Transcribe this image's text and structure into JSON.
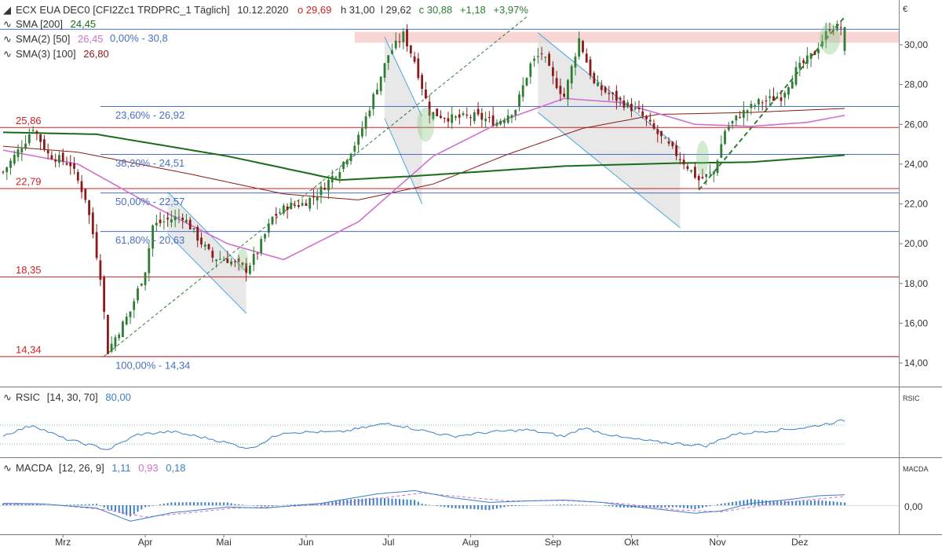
{
  "header": {
    "instrument": "ECX EUA DEC0 [CFI2Zc1 TRDPRC_1 Täglich]",
    "date": "10.12.2020",
    "open": "o 29,69",
    "high": "h 31,00",
    "low": "l 29,62",
    "close": "c 30,88",
    "change": "+1,18",
    "change_pct": "+3,97%"
  },
  "indicators": [
    {
      "label": "SMA [200]",
      "value": "24,45",
      "color": "#1a6b1a"
    },
    {
      "label": "SMA(2) [50]",
      "value": "26,45",
      "color": "#d070d0"
    },
    {
      "label": "SMA(3) [100]",
      "value": "26,80",
      "color": "#8b1a1a"
    }
  ],
  "rsi": {
    "label": "RSIC",
    "params": "[14, 30, 70]",
    "value": "80,00",
    "axis_label": "RSIC"
  },
  "macd": {
    "label": "MACDA",
    "params": "[12, 26, 9]",
    "v1": "1,11",
    "v2": "0,93",
    "v3": "0,18",
    "axis_label": "MACDA",
    "zero_label": "0,00"
  },
  "colors": {
    "up": "#2e7d32",
    "down": "#8b1a1a",
    "sma200": "#1a6b1a",
    "sma50": "#d070d0",
    "sma100": "#8b1a1a",
    "fib": "#4a6fc2",
    "support": "#cc2222",
    "channel": "#4aa8d8",
    "trend": "#2e7d32"
  },
  "chart_data": {
    "type": "candlestick",
    "y_unit": "€",
    "ylim": [
      13.5,
      31.3
    ],
    "y_ticks": [
      "14,00",
      "16,00",
      "18,00",
      "20,00",
      "22,00",
      "24,00",
      "26,00",
      "28,00",
      "30,00"
    ],
    "y_tick_values": [
      14,
      16,
      18,
      20,
      22,
      24,
      26,
      28,
      30
    ],
    "x_ticks": [
      "Mrz",
      "Apr",
      "Mai",
      "Jun",
      "Jul",
      "Aug",
      "Sep",
      "Okt",
      "Nov",
      "Dez"
    ],
    "x_tick_index": [
      16,
      38,
      59,
      81,
      103,
      125,
      147,
      168,
      191,
      213
    ],
    "n_days": 226,
    "price_keypoints": [
      [
        0,
        23.6
      ],
      [
        6,
        25.2
      ],
      [
        8,
        25.86
      ],
      [
        12,
        24.5
      ],
      [
        18,
        24.0
      ],
      [
        22,
        22.3
      ],
      [
        24,
        20.5
      ],
      [
        26,
        18.4
      ],
      [
        28,
        14.6
      ],
      [
        30,
        15.3
      ],
      [
        34,
        16.6
      ],
      [
        38,
        18.7
      ],
      [
        40,
        20.9
      ],
      [
        44,
        21.2
      ],
      [
        48,
        21.4
      ],
      [
        52,
        20.3
      ],
      [
        56,
        19.3
      ],
      [
        60,
        19.2
      ],
      [
        65,
        18.7
      ],
      [
        68,
        19.6
      ],
      [
        72,
        21.3
      ],
      [
        76,
        21.9
      ],
      [
        80,
        22.0
      ],
      [
        84,
        22.5
      ],
      [
        90,
        23.8
      ],
      [
        95,
        25.3
      ],
      [
        99,
        27.4
      ],
      [
        103,
        29.5
      ],
      [
        107,
        30.5
      ],
      [
        110,
        29.2
      ],
      [
        114,
        26.6
      ],
      [
        120,
        26.3
      ],
      [
        126,
        26.4
      ],
      [
        132,
        26.1
      ],
      [
        137,
        26.8
      ],
      [
        141,
        29.0
      ],
      [
        144,
        29.6
      ],
      [
        147,
        28.3
      ],
      [
        150,
        27.4
      ],
      [
        154,
        30.3
      ],
      [
        158,
        28.0
      ],
      [
        163,
        27.4
      ],
      [
        170,
        26.6
      ],
      [
        176,
        25.3
      ],
      [
        182,
        24.1
      ],
      [
        186,
        23.2
      ],
      [
        190,
        23.6
      ],
      [
        193,
        25.7
      ],
      [
        197,
        26.5
      ],
      [
        202,
        27.1
      ],
      [
        208,
        27.4
      ],
      [
        212,
        28.7
      ],
      [
        217,
        29.6
      ],
      [
        221,
        30.88
      ]
    ],
    "levels": [
      {
        "label": "25,86",
        "value": 25.86
      },
      {
        "label": "22,79",
        "value": 22.79
      },
      {
        "label": "18,35",
        "value": 18.35
      },
      {
        "label": "14,34",
        "value": 14.34
      }
    ],
    "fib_levels": [
      {
        "label": "0,00% - 30,8",
        "value": 30.8
      },
      {
        "label": "23,60% - 26,92",
        "value": 26.92
      },
      {
        "label": "38,20% - 24,51",
        "value": 24.51
      },
      {
        "label": "50,00% - 22,57",
        "value": 22.57
      },
      {
        "label": "61,80% - 20,63",
        "value": 20.63
      },
      {
        "label": "100,00% - 14,34",
        "value": 14.34
      }
    ],
    "resistance_zone": [
      30.1,
      30.65
    ],
    "sma200_keypoints": [
      [
        0,
        25.6
      ],
      [
        25,
        25.5
      ],
      [
        60,
        24.4
      ],
      [
        90,
        23.2
      ],
      [
        110,
        23.4
      ],
      [
        150,
        23.9
      ],
      [
        180,
        24.05
      ],
      [
        200,
        24.1
      ],
      [
        225,
        24.45
      ]
    ],
    "sma100_keypoints": [
      [
        0,
        24.9
      ],
      [
        20,
        24.6
      ],
      [
        50,
        23.5
      ],
      [
        75,
        22.5
      ],
      [
        95,
        22.2
      ],
      [
        115,
        23.0
      ],
      [
        135,
        24.5
      ],
      [
        155,
        25.8
      ],
      [
        175,
        26.5
      ],
      [
        200,
        26.6
      ],
      [
        225,
        26.8
      ]
    ],
    "sma50_keypoints": [
      [
        0,
        24.7
      ],
      [
        20,
        24.0
      ],
      [
        40,
        21.9
      ],
      [
        60,
        20.0
      ],
      [
        75,
        19.2
      ],
      [
        95,
        21.1
      ],
      [
        115,
        24.4
      ],
      [
        135,
        26.3
      ],
      [
        150,
        27.3
      ],
      [
        165,
        27.1
      ],
      [
        185,
        26.0
      ],
      [
        200,
        25.9
      ],
      [
        215,
        26.1
      ],
      [
        225,
        26.45
      ]
    ],
    "rsi_keypoints": [
      [
        0,
        48
      ],
      [
        8,
        70
      ],
      [
        16,
        42
      ],
      [
        28,
        18
      ],
      [
        36,
        50
      ],
      [
        45,
        56
      ],
      [
        56,
        40
      ],
      [
        66,
        20
      ],
      [
        75,
        55
      ],
      [
        90,
        55
      ],
      [
        103,
        74
      ],
      [
        110,
        62
      ],
      [
        120,
        46
      ],
      [
        130,
        55
      ],
      [
        140,
        60
      ],
      [
        150,
        46
      ],
      [
        155,
        64
      ],
      [
        165,
        44
      ],
      [
        175,
        34
      ],
      [
        188,
        26
      ],
      [
        195,
        50
      ],
      [
        205,
        58
      ],
      [
        215,
        65
      ],
      [
        225,
        80
      ]
    ],
    "rsi_bounds": [
      30,
      70
    ],
    "macd_keypoints": [
      [
        0,
        0.2
      ],
      [
        10,
        0.15
      ],
      [
        25,
        -0.3
      ],
      [
        34,
        -1.7
      ],
      [
        45,
        -0.8
      ],
      [
        60,
        -0.2
      ],
      [
        70,
        -0.3
      ],
      [
        85,
        0.2
      ],
      [
        100,
        1.2
      ],
      [
        110,
        1.55
      ],
      [
        120,
        0.8
      ],
      [
        130,
        0.3
      ],
      [
        140,
        0.45
      ],
      [
        150,
        0.55
      ],
      [
        160,
        0.3
      ],
      [
        170,
        -0.2
      ],
      [
        185,
        -0.85
      ],
      [
        192,
        -0.6
      ],
      [
        200,
        0.2
      ],
      [
        210,
        0.6
      ],
      [
        218,
        1.0
      ],
      [
        225,
        1.11
      ]
    ],
    "signal_keypoints": [
      [
        0,
        0.1
      ],
      [
        12,
        0.1
      ],
      [
        28,
        -0.5
      ],
      [
        38,
        -1.25
      ],
      [
        50,
        -0.8
      ],
      [
        62,
        -0.3
      ],
      [
        75,
        -0.15
      ],
      [
        90,
        0.2
      ],
      [
        105,
        0.95
      ],
      [
        112,
        1.3
      ],
      [
        125,
        0.8
      ],
      [
        135,
        0.45
      ],
      [
        150,
        0.5
      ],
      [
        165,
        0.2
      ],
      [
        180,
        -0.5
      ],
      [
        192,
        -0.7
      ],
      [
        205,
        0.1
      ],
      [
        215,
        0.55
      ],
      [
        225,
        0.93
      ]
    ]
  }
}
